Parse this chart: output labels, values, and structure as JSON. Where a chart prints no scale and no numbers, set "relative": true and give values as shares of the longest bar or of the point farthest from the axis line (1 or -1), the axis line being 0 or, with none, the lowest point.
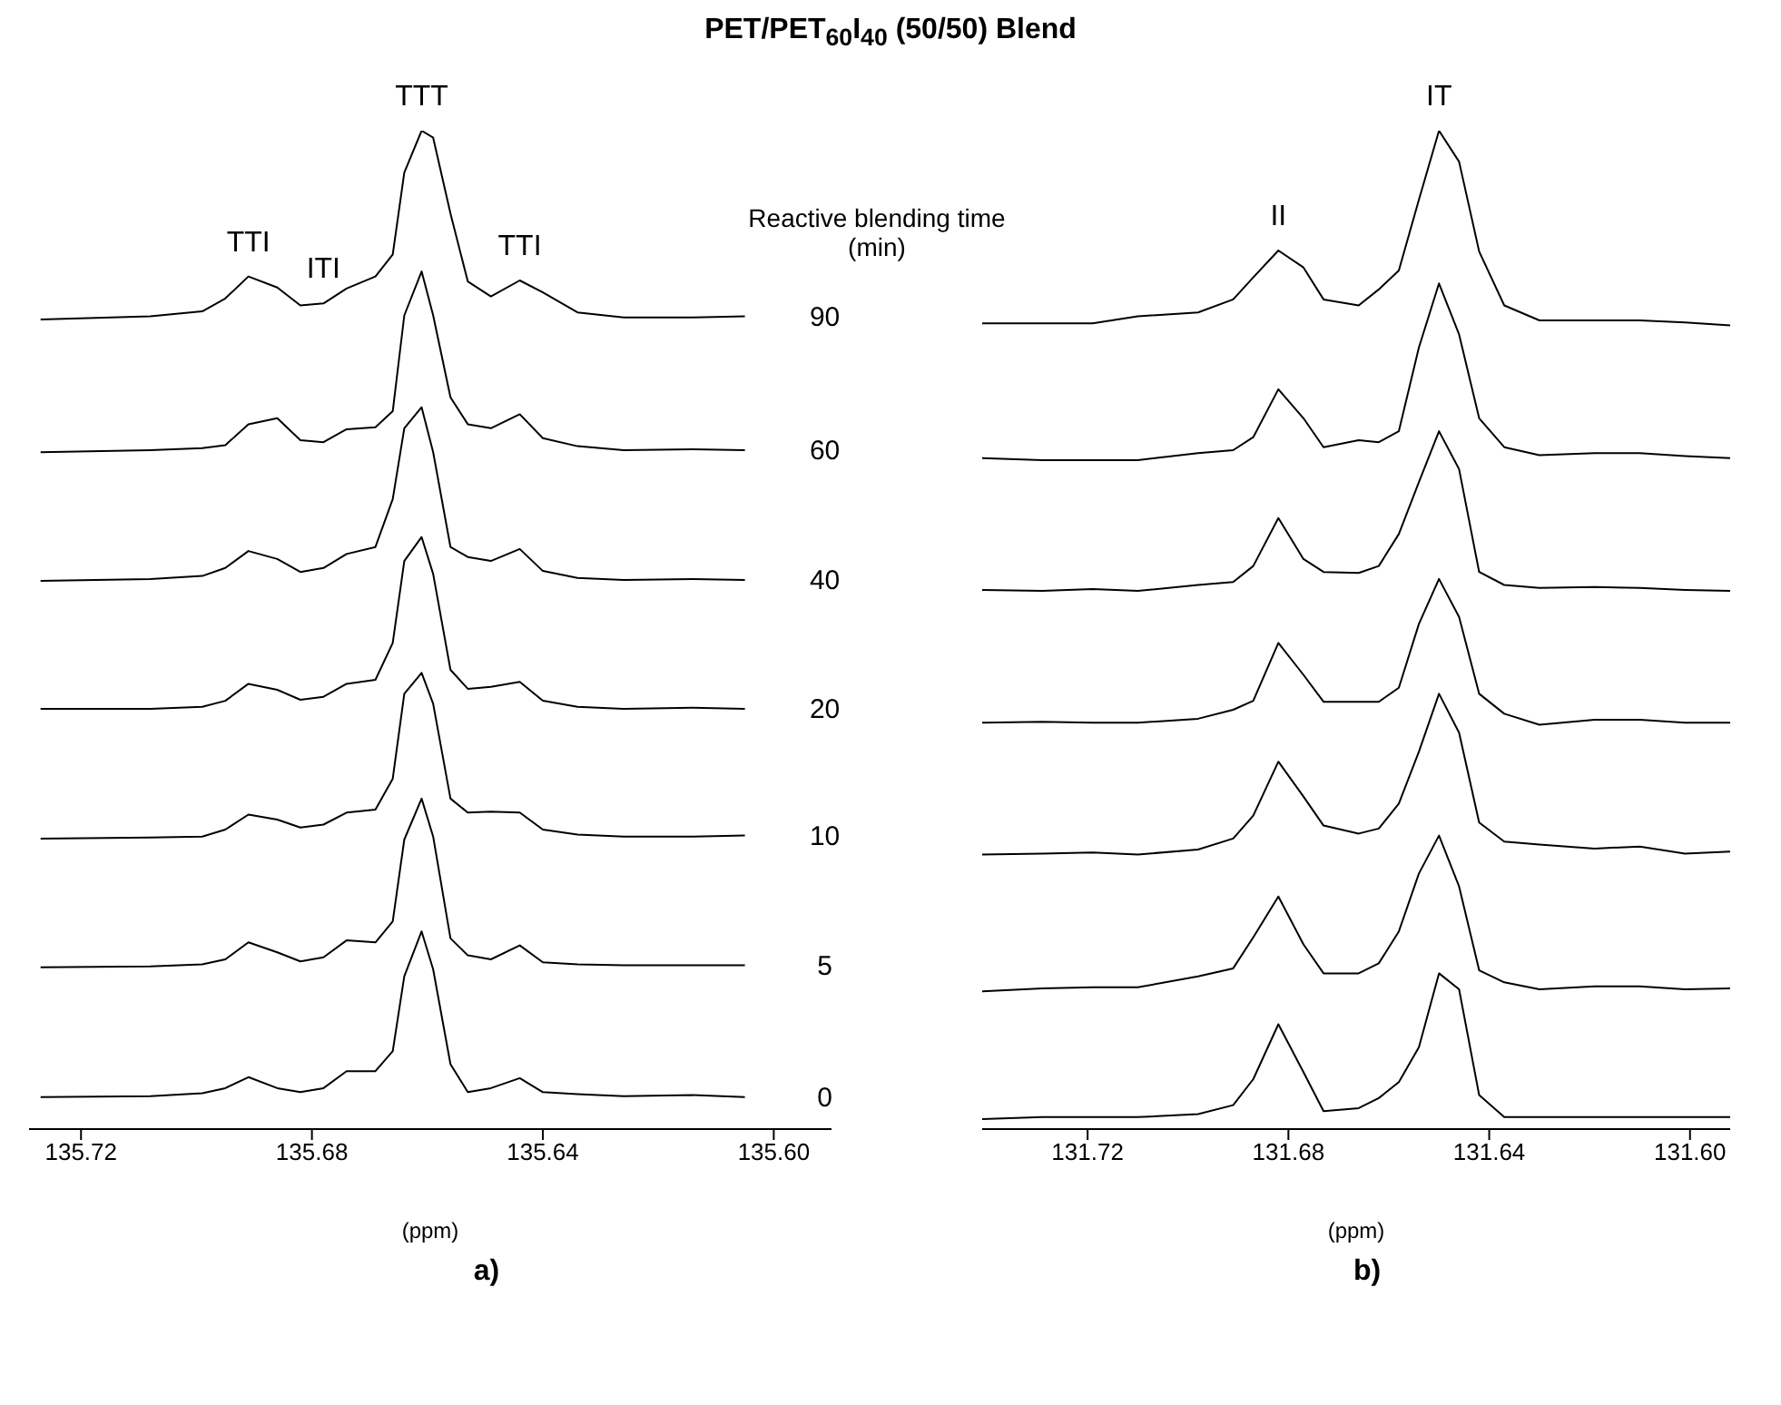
{
  "chart_data": [
    {
      "type": "line",
      "title": "PET/PET$_{60}$I$_{40}$ (50/50) Blend",
      "xlabel": "(ppm)",
      "legend_title": "Reactive blending time (min)",
      "relative": true,
      "legend": false,
      "grid": false,
      "marker": "none",
      "line_style": "solid",
      "xlim": [
        135.729,
        135.59
      ],
      "xticks": [
        135.72,
        135.68,
        135.64,
        {
          "value": 135.6,
          "label": "135.60"
        }
      ],
      "x": [
        135.727,
        135.708,
        135.699,
        135.695,
        135.691,
        135.686,
        135.682,
        135.678,
        135.674,
        135.669,
        135.666,
        135.664,
        135.661,
        135.659,
        135.656,
        135.653,
        135.649,
        135.644,
        135.64,
        135.634,
        135.626,
        135.614,
        135.605
      ],
      "annotations": [
        {
          "text": "TTI",
          "x": 135.691,
          "y": 0.854
        },
        {
          "text": "ITI",
          "x": 135.678,
          "y": 0.827
        },
        {
          "text": "TTT",
          "x": 135.661,
          "y": 1
        },
        {
          "text": "TTI",
          "x": 135.644,
          "y": 0.85
        },
        "a)"
      ],
      "series": [
        {
          "name": "90",
          "color": "#000000",
          "values": [
            0.811,
            0.814,
            0.819,
            0.832,
            0.854,
            0.843,
            0.825,
            0.827,
            0.842,
            0.854,
            0.876,
            0.958,
            1,
            0.993,
            0.917,
            0.849,
            0.834,
            0.85,
            0.838,
            0.818,
            0.813,
            0.813,
            0.814
          ]
        },
        {
          "name": "60",
          "color": "#000000",
          "values": [
            0.678,
            0.68,
            0.682,
            0.685,
            0.706,
            0.712,
            0.69,
            0.688,
            0.701,
            0.703,
            0.719,
            0.815,
            0.859,
            0.815,
            0.733,
            0.706,
            0.702,
            0.716,
            0.692,
            0.684,
            0.68,
            0.681,
            0.68
          ]
        },
        {
          "name": "40",
          "color": "#000000",
          "values": [
            0.549,
            0.551,
            0.554,
            0.562,
            0.579,
            0.571,
            0.558,
            0.562,
            0.576,
            0.583,
            0.631,
            0.702,
            0.723,
            0.678,
            0.583,
            0.573,
            0.569,
            0.581,
            0.559,
            0.552,
            0.55,
            0.551,
            0.55
          ]
        },
        {
          "name": "20",
          "color": "#000000",
          "values": [
            0.421,
            0.421,
            0.423,
            0.429,
            0.446,
            0.44,
            0.43,
            0.433,
            0.446,
            0.45,
            0.487,
            0.569,
            0.593,
            0.556,
            0.46,
            0.441,
            0.443,
            0.448,
            0.429,
            0.423,
            0.421,
            0.422,
            0.421
          ]
        },
        {
          "name": "10",
          "color": "#000000",
          "values": [
            0.291,
            0.292,
            0.293,
            0.3,
            0.315,
            0.31,
            0.302,
            0.305,
            0.317,
            0.32,
            0.351,
            0.436,
            0.457,
            0.426,
            0.331,
            0.317,
            0.318,
            0.317,
            0.3,
            0.295,
            0.293,
            0.293,
            0.294
          ]
        },
        {
          "name": "5",
          "color": "#000000",
          "values": [
            0.162,
            0.163,
            0.165,
            0.17,
            0.187,
            0.177,
            0.168,
            0.172,
            0.189,
            0.187,
            0.208,
            0.29,
            0.331,
            0.293,
            0.191,
            0.174,
            0.17,
            0.184,
            0.167,
            0.165,
            0.164,
            0.164,
            0.164
          ]
        },
        {
          "name": "0",
          "color": "#000000",
          "values": [
            0.032,
            0.033,
            0.036,
            0.041,
            0.052,
            0.041,
            0.037,
            0.041,
            0.058,
            0.058,
            0.078,
            0.153,
            0.198,
            0.16,
            0.065,
            0.037,
            0.041,
            0.051,
            0.037,
            0.035,
            0.033,
            0.034,
            0.032
          ]
        }
      ]
    },
    {
      "type": "line",
      "xlabel": "(ppm)",
      "relative": true,
      "legend": false,
      "grid": false,
      "marker": "none",
      "line_style": "solid",
      "xlim": [
        131.741,
        131.592
      ],
      "xticks": [
        131.72,
        131.68,
        131.64,
        {
          "value": 131.6,
          "label": "131.60"
        }
      ],
      "x": [
        131.741,
        131.729,
        131.719,
        131.71,
        131.698,
        131.691,
        131.687,
        131.682,
        131.677,
        131.673,
        131.666,
        131.662,
        131.658,
        131.654,
        131.65,
        131.646,
        131.642,
        131.637,
        131.63,
        131.619,
        131.61,
        131.601,
        131.592
      ],
      "annotations": [
        {
          "text": "II",
          "x": 131.682,
          "y": 0.88
        },
        {
          "text": "IT",
          "x": 131.65,
          "y": 1
        },
        "b)"
      ],
      "series": [
        {
          "color": "#000000",
          "values": [
            0.807,
            0.807,
            0.807,
            0.814,
            0.818,
            0.831,
            0.853,
            0.88,
            0.863,
            0.831,
            0.825,
            0.841,
            0.86,
            0.931,
            1,
            0.969,
            0.879,
            0.825,
            0.81,
            0.81,
            0.81,
            0.808,
            0.805
          ]
        },
        {
          "color": "#000000",
          "values": [
            0.672,
            0.67,
            0.67,
            0.67,
            0.677,
            0.68,
            0.693,
            0.741,
            0.712,
            0.683,
            0.69,
            0.688,
            0.699,
            0.783,
            0.847,
            0.796,
            0.712,
            0.683,
            0.675,
            0.677,
            0.677,
            0.674,
            0.672
          ]
        },
        {
          "color": "#000000",
          "values": [
            0.54,
            0.539,
            0.541,
            0.539,
            0.545,
            0.548,
            0.564,
            0.612,
            0.571,
            0.558,
            0.557,
            0.564,
            0.596,
            0.648,
            0.699,
            0.661,
            0.558,
            0.545,
            0.542,
            0.543,
            0.542,
            0.54,
            0.539
          ]
        },
        {
          "color": "#000000",
          "values": [
            0.407,
            0.408,
            0.407,
            0.407,
            0.411,
            0.42,
            0.429,
            0.487,
            0.455,
            0.428,
            0.428,
            0.428,
            0.442,
            0.506,
            0.551,
            0.513,
            0.436,
            0.416,
            0.405,
            0.41,
            0.41,
            0.407,
            0.407
          ]
        },
        {
          "color": "#000000",
          "values": [
            0.275,
            0.276,
            0.277,
            0.275,
            0.28,
            0.291,
            0.314,
            0.368,
            0.333,
            0.304,
            0.296,
            0.301,
            0.326,
            0.378,
            0.436,
            0.397,
            0.307,
            0.288,
            0.285,
            0.281,
            0.283,
            0.276,
            0.278
          ]
        },
        {
          "color": "#000000",
          "values": [
            0.138,
            0.141,
            0.142,
            0.142,
            0.153,
            0.161,
            0.192,
            0.233,
            0.185,
            0.156,
            0.156,
            0.166,
            0.198,
            0.256,
            0.294,
            0.243,
            0.159,
            0.147,
            0.14,
            0.143,
            0.143,
            0.14,
            0.141
          ]
        },
        {
          "color": "#000000",
          "values": [
            0.01,
            0.012,
            0.012,
            0.012,
            0.015,
            0.024,
            0.05,
            0.105,
            0.057,
            0.018,
            0.021,
            0.031,
            0.047,
            0.082,
            0.156,
            0.14,
            0.034,
            0.012,
            0.012,
            0.012,
            0.012,
            0.012,
            0.012
          ]
        }
      ]
    }
  ]
}
